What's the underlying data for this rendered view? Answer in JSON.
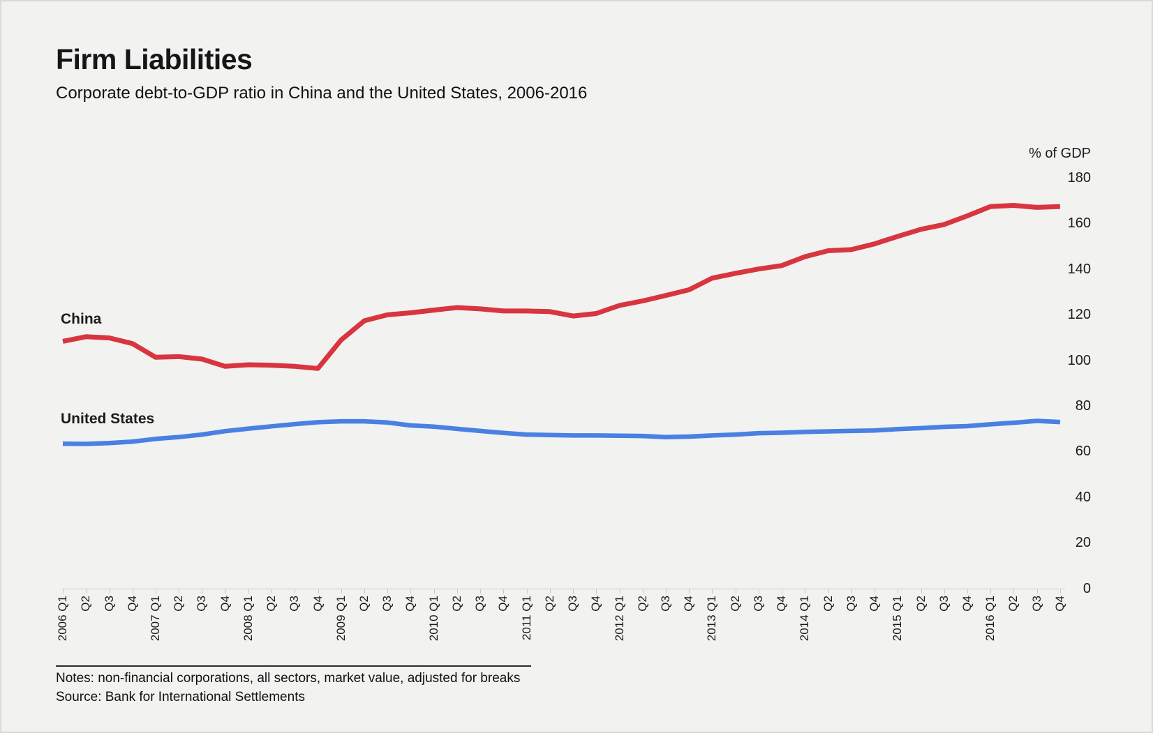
{
  "header": {
    "title": "Firm Liabilities",
    "subtitle": "Corporate debt-to-GDP ratio in China and the United States, 2006-2016"
  },
  "chart_data": {
    "type": "line",
    "title": "Firm Liabilities",
    "subtitle": "Corporate debt-to-GDP ratio in China and the United States, 2006-2016",
    "ylabel": "% of GDP",
    "xlabel": "",
    "ylim": [
      0,
      180
    ],
    "yticks": [
      0,
      20,
      40,
      60,
      80,
      100,
      120,
      140,
      160,
      180
    ],
    "grid": false,
    "legend_position": "inline-labels-left",
    "x": [
      "2006 Q1",
      "Q2",
      "Q3",
      "Q4",
      "2007 Q1",
      "Q2",
      "Q3",
      "Q4",
      "2008 Q1",
      "Q2",
      "Q3",
      "Q4",
      "2009 Q1",
      "Q2",
      "Q3",
      "Q4",
      "2010 Q1",
      "Q2",
      "Q3",
      "Q4",
      "2011 Q1",
      "Q2",
      "Q3",
      "Q4",
      "2012 Q1",
      "Q2",
      "Q3",
      "Q4",
      "2013 Q1",
      "Q2",
      "Q3",
      "Q4",
      "2014 Q1",
      "Q2",
      "Q3",
      "Q4",
      "2015 Q1",
      "Q2",
      "Q3",
      "Q4",
      "2016 Q1",
      "Q2",
      "Q3",
      "Q4"
    ],
    "series": [
      {
        "name": "China",
        "color": "#d8353f",
        "values": [
          108.3,
          110.3,
          109.8,
          107.3,
          101.3,
          101.6,
          100.5,
          97.3,
          98.0,
          97.8,
          97.3,
          96.4,
          108.9,
          117.3,
          119.9,
          120.8,
          122.0,
          123.1,
          122.5,
          121.6,
          121.6,
          121.3,
          119.4,
          120.5,
          124.0,
          126.0,
          128.4,
          130.9,
          136.0,
          138.1,
          140.0,
          141.5,
          145.4,
          148.0,
          148.5,
          151.0,
          154.3,
          157.4,
          159.5,
          163.3,
          167.4,
          167.9,
          167.0,
          167.4
        ]
      },
      {
        "name": "United States",
        "color": "#4a80e2",
        "values": [
          63.4,
          63.3,
          63.7,
          64.3,
          65.5,
          66.3,
          67.4,
          68.9,
          70.0,
          71.0,
          72.0,
          72.8,
          73.2,
          73.2,
          72.7,
          71.4,
          70.9,
          69.9,
          69.0,
          68.1,
          67.4,
          67.2,
          67.0,
          67.0,
          66.9,
          66.8,
          66.3,
          66.5,
          67.0,
          67.4,
          68.0,
          68.2,
          68.6,
          68.8,
          69.0,
          69.2,
          69.8,
          70.2,
          70.8,
          71.1,
          71.9,
          72.6,
          73.4,
          72.9
        ]
      }
    ]
  },
  "footer": {
    "notes": "Notes: non-financial corporations, all sectors, market value, adjusted for breaks",
    "source": "Source: Bank for International Settlements"
  }
}
